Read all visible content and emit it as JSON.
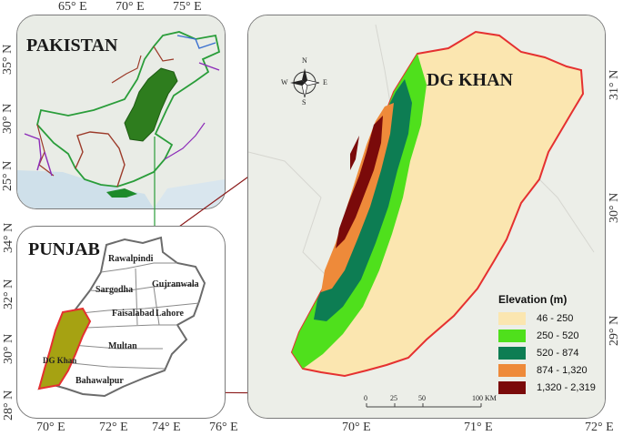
{
  "pakistan_map": {
    "title": "PAKISTAN",
    "top_ticks": [
      "65° E",
      "70° E",
      "75° E"
    ],
    "left_ticks": [
      "35° N",
      "30° N",
      "25° N"
    ]
  },
  "punjab_map": {
    "title": "PUNJAB",
    "left_ticks": [
      "34° N",
      "32° N",
      "30° N",
      "28° N"
    ],
    "bottom_ticks": [
      "70° E",
      "72° E",
      "74° E",
      "76° E"
    ],
    "cities": [
      "Rawalpindi",
      "Sargodha",
      "Gujranwala",
      "Faisalabad",
      "Lahore",
      "Multan",
      "DG Khan",
      "Bahawalpur"
    ]
  },
  "dgkhan_map": {
    "title": "DG KHAN",
    "right_ticks": [
      "31° N",
      "30° N",
      "29° N"
    ],
    "bottom_ticks": [
      "70° E",
      "71° E",
      "72° E"
    ],
    "compass": {
      "n": "N",
      "s": "S",
      "e": "E",
      "w": "W"
    },
    "scale": {
      "ticks": [
        "0",
        "25",
        "50",
        "100 KM"
      ]
    }
  },
  "legend": {
    "title": "Elevation (m)",
    "items": [
      {
        "label": "46 - 250",
        "color": "#fbe6b0"
      },
      {
        "label": "250 - 520",
        "color": "#4fe01c"
      },
      {
        "label": "520 - 874",
        "color": "#0d7d53"
      },
      {
        "label": "874 - 1,320",
        "color": "#ee8a3a"
      },
      {
        "label": "1,320 - 2,319",
        "color": "#7a0a0a"
      }
    ]
  },
  "colors": {
    "pakistan_highlight": "#2e7d1e",
    "dg_khan_fill": "#a6a212",
    "boundary_red": "#e53030",
    "connector": "#8b1a1a"
  }
}
